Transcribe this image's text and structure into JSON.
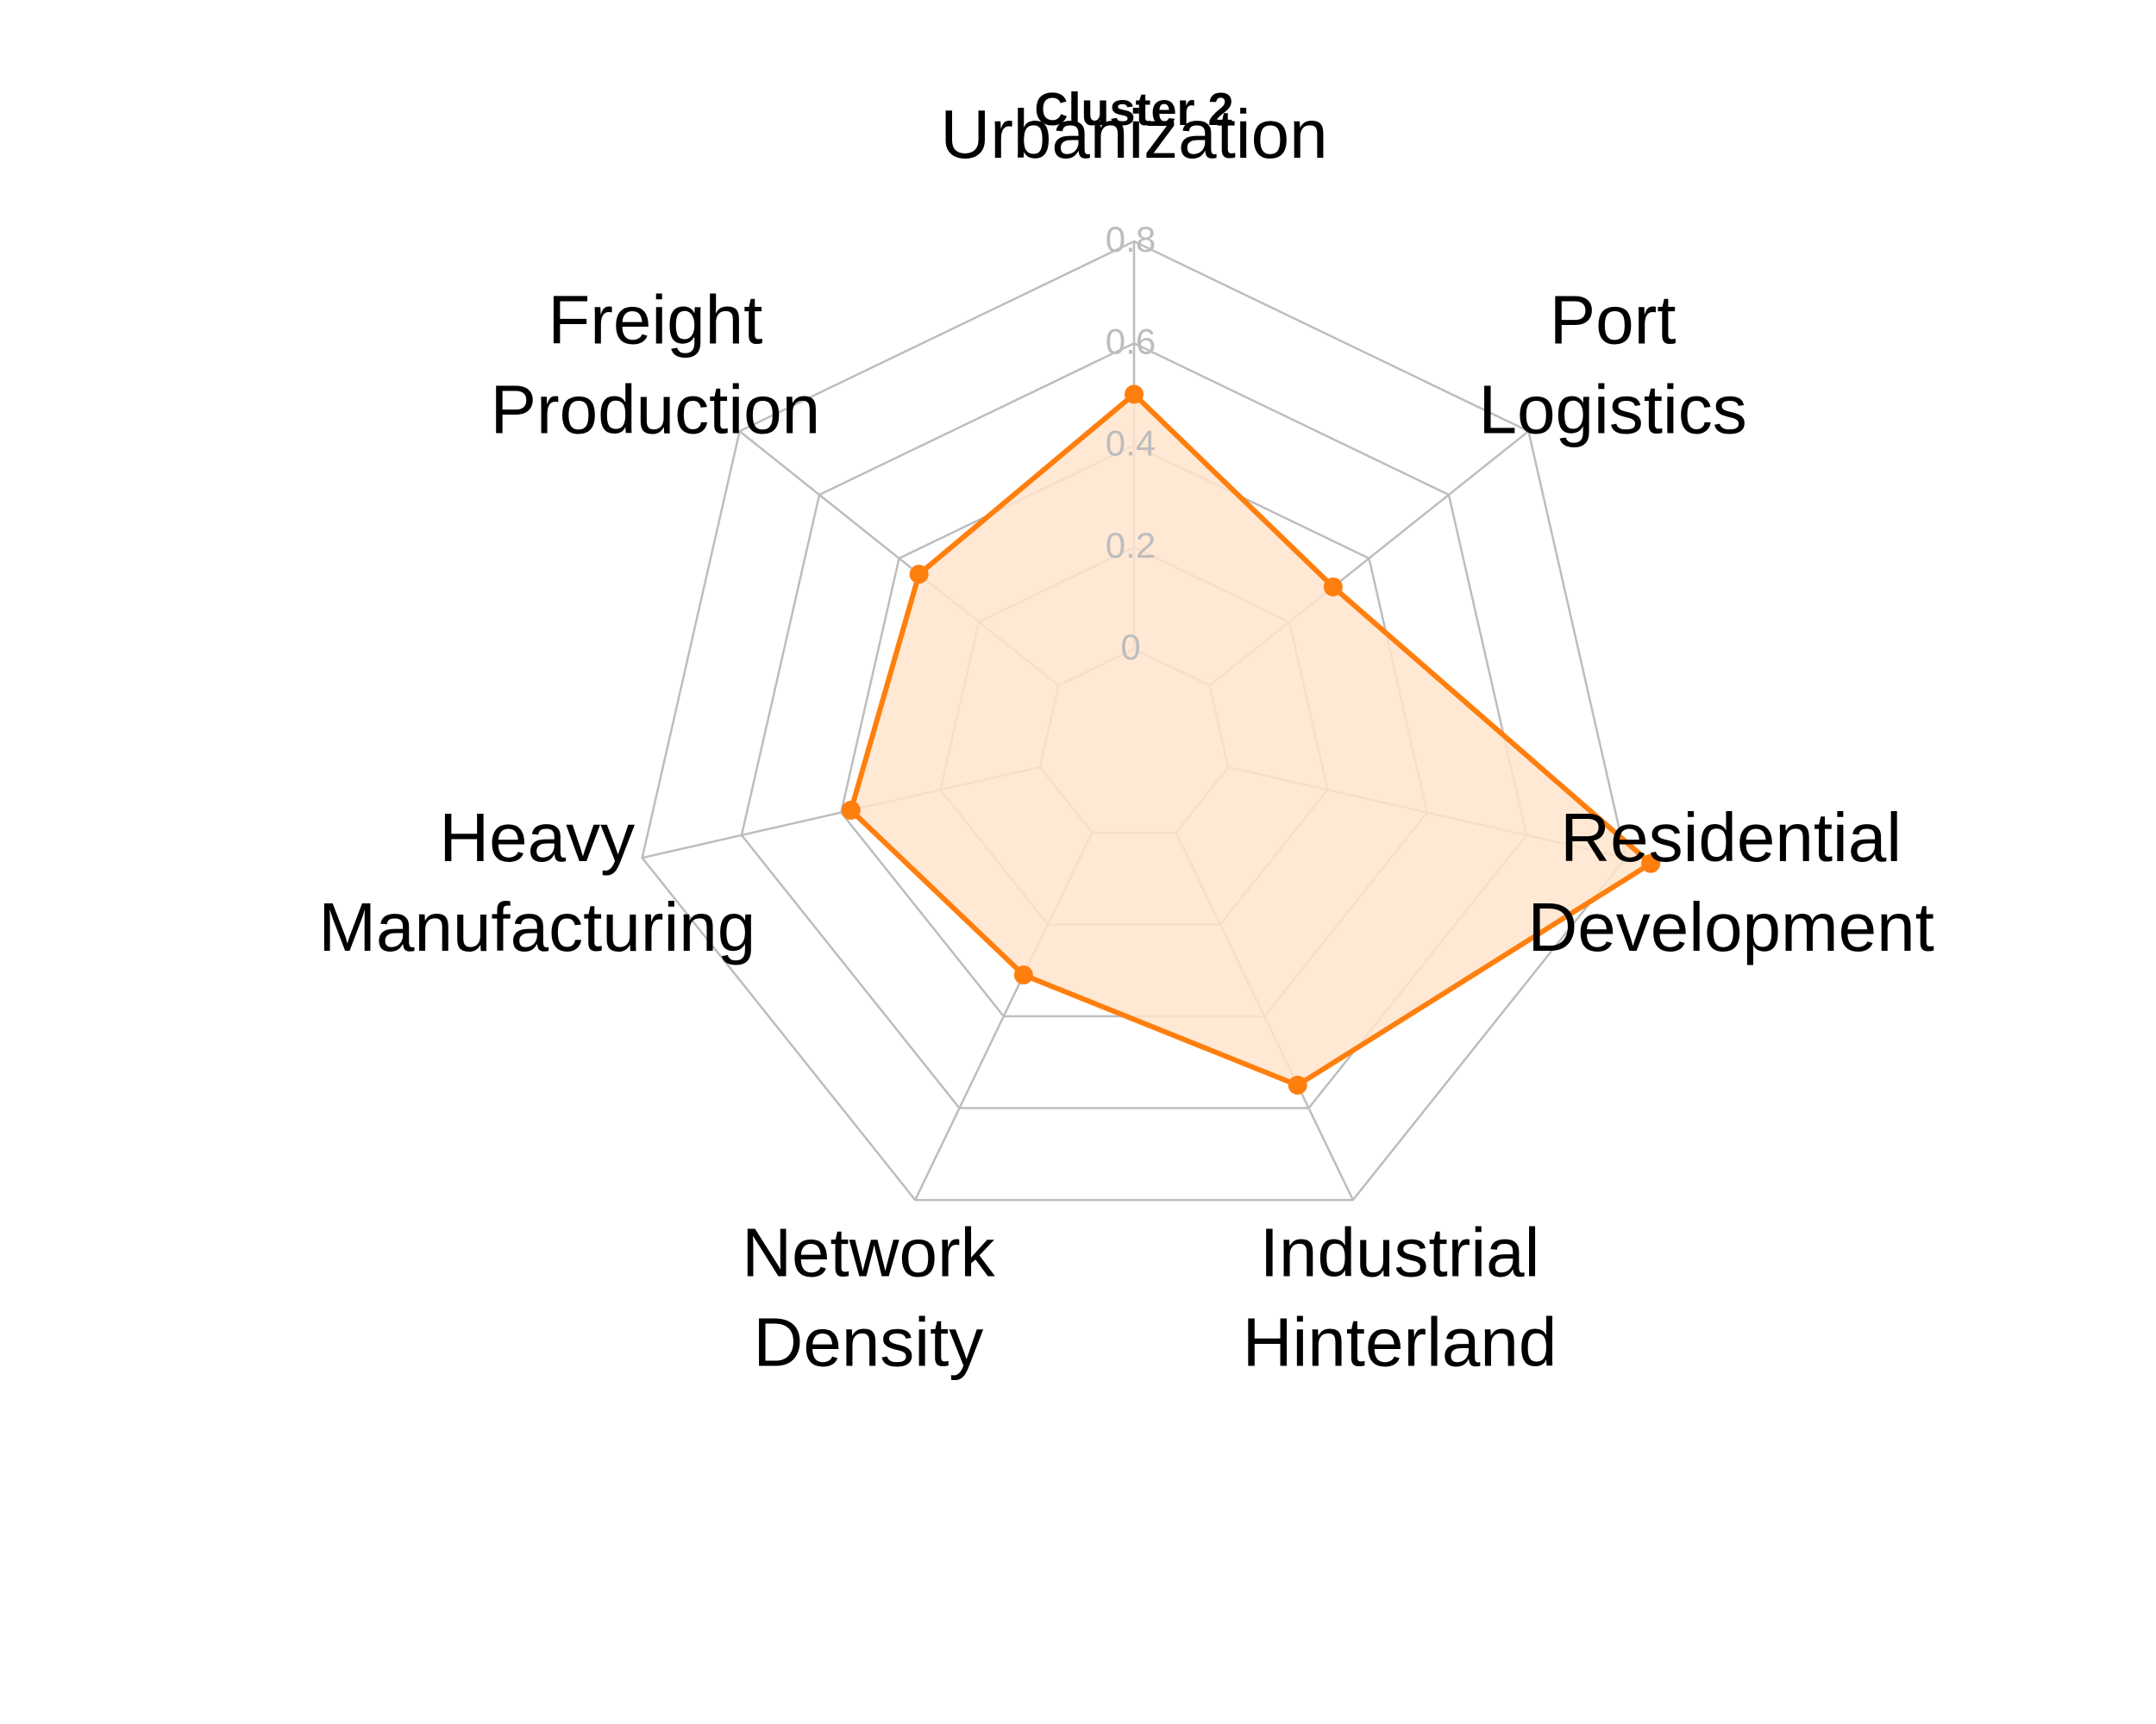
{
  "chart_data": {
    "type": "radar",
    "title": "Cluster 2",
    "axes": [
      [
        "Urbanization"
      ],
      [
        "Port",
        "Logistics"
      ],
      [
        "Residential",
        "Development"
      ],
      [
        "Industrial",
        "Hinterland"
      ],
      [
        "Network",
        "Density"
      ],
      [
        "Heavy",
        "Manufacturing"
      ],
      [
        "Freight",
        "Production"
      ]
    ],
    "ticks": [
      "0",
      "0.2",
      "0.4",
      "0.6",
      "0.8"
    ],
    "tick_values": [
      0,
      0.2,
      0.4,
      0.6,
      0.8
    ],
    "rlim": [
      0,
      0.8
    ],
    "series": [
      {
        "values": [
          0.5,
          0.31,
          0.85,
          0.55,
          0.31,
          0.38,
          0.35
        ],
        "color": "#ff7f0e",
        "fill": "#ffe5cc"
      }
    ]
  }
}
